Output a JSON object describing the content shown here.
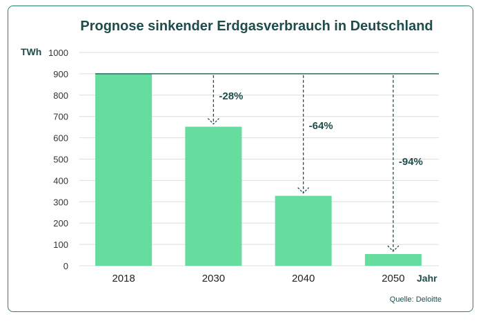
{
  "chart_data": {
    "type": "bar",
    "title": "Prognose sinkender Erdgasverbrauch in Deutschland",
    "ylabel": "TWh",
    "xlabel": "Jahr",
    "categories": [
      "2018",
      "2030",
      "2040",
      "2050"
    ],
    "values": [
      900,
      652,
      328,
      55
    ],
    "ylim": [
      0,
      1000
    ],
    "yticks": [
      0,
      100,
      200,
      300,
      400,
      500,
      600,
      700,
      800,
      900,
      1000
    ],
    "grid": true,
    "reference_value": 900,
    "annotations": [
      {
        "category": "2030",
        "label": "-28%"
      },
      {
        "category": "2040",
        "label": "-64%"
      },
      {
        "category": "2050",
        "label": "-94%"
      }
    ],
    "source": "Quelle: Deloitte",
    "colors": {
      "bar": "#66dd9e",
      "text": "#1d4d4a",
      "grid": "#dddddd",
      "reference_line": "#2a6b62"
    }
  }
}
